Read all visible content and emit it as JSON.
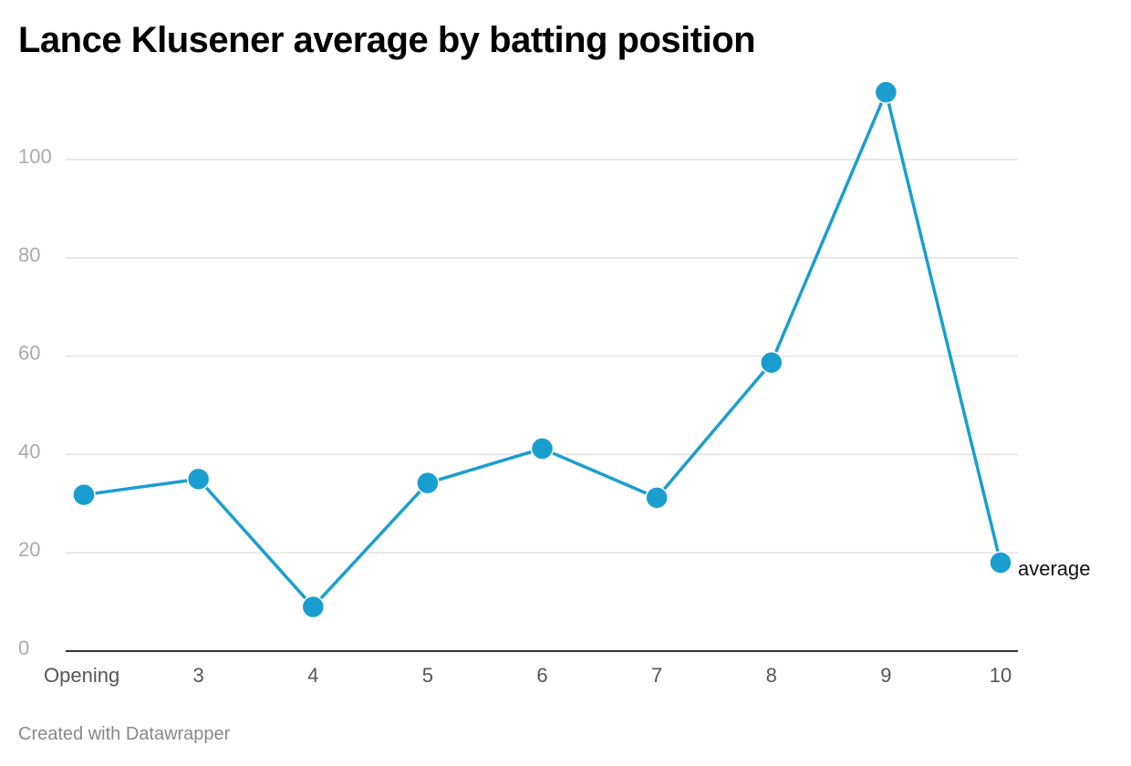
{
  "title": "Lance Klusener average by batting position",
  "footer": "Created with Datawrapper",
  "colors": {
    "line": "#1a9ecf",
    "grid": "#e2e2e2",
    "axis": "#333333"
  },
  "chart_data": {
    "type": "line",
    "title": "Lance Klusener average by batting position",
    "xlabel": "",
    "ylabel": "",
    "categories": [
      "Opening",
      "3",
      "4",
      "5",
      "6",
      "7",
      "8",
      "9",
      "10"
    ],
    "series": [
      {
        "name": "average",
        "values": [
          31.8,
          35.0,
          9.0,
          34.2,
          41.2,
          31.2,
          58.7,
          113.7,
          18.0
        ]
      }
    ],
    "yticks": [
      0,
      20,
      40,
      60,
      80,
      100
    ],
    "ylim": [
      0,
      120
    ],
    "grid": true,
    "legend": "direct label at end of line"
  }
}
